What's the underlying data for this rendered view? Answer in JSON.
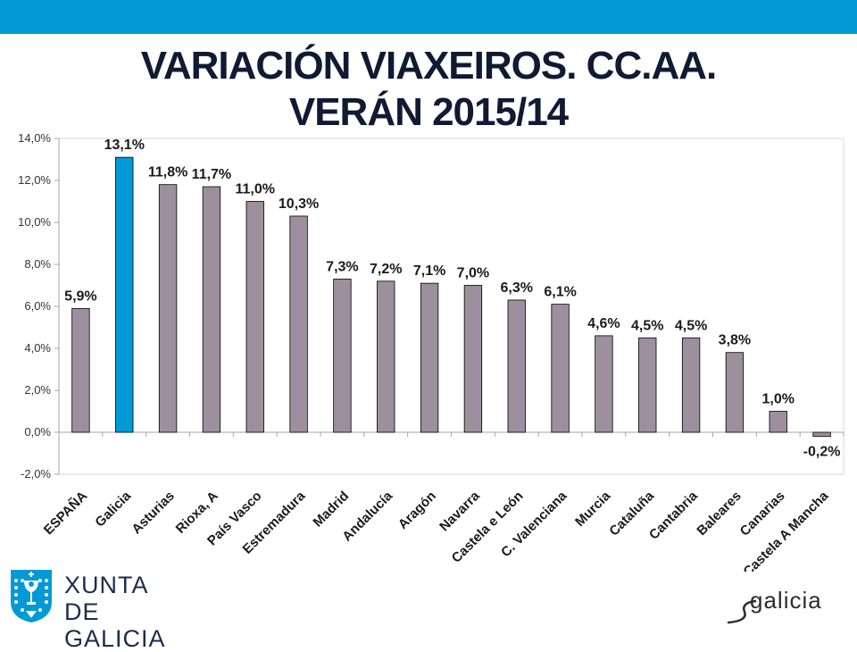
{
  "header": {
    "title_line1": "VARIACIÓN VIAXEIROS. CC.AA.",
    "title_line2": "VERÁN 2015/14"
  },
  "colors": {
    "bar_default": "#9d8f9d",
    "bar_highlight": "#0399d6",
    "top_bar": "#0399d6",
    "title": "#101a33",
    "logo_blue": "#0399d6"
  },
  "chart_data": {
    "type": "bar",
    "title": "VARIACIÓN VIAXEIROS. CC.AA. VERÁN 2015/14",
    "xlabel": "",
    "ylabel": "",
    "ylim": [
      -2.0,
      14.0
    ],
    "ytick_step": 2.0,
    "yticks": [
      "-2,0%",
      "0,0%",
      "2,0%",
      "4,0%",
      "6,0%",
      "8,0%",
      "10,0%",
      "12,0%",
      "14,0%"
    ],
    "grid": false,
    "highlight_category": "Galicia",
    "categories": [
      "ESPAÑA",
      "Galicia",
      "Asturias",
      "Rioxa, A",
      "País Vasco",
      "Estremadura",
      "Madrid",
      "Andalucía",
      "Aragón",
      "Navarra",
      "Castela e León",
      "C. Valenciana",
      "Murcia",
      "Cataluña",
      "Cantabria",
      "Baleares",
      "Canarias",
      "Castela A Mancha"
    ],
    "values": [
      5.9,
      13.1,
      11.8,
      11.7,
      11.0,
      10.3,
      7.3,
      7.2,
      7.1,
      7.0,
      6.3,
      6.1,
      4.6,
      4.5,
      4.5,
      3.8,
      1.0,
      -0.2
    ],
    "labels": [
      "5,9%",
      "13,1%",
      "11,8%",
      "11,7%",
      "11,0%",
      "10,3%",
      "7,3%",
      "7,2%",
      "7,1%",
      "7,0%",
      "6,3%",
      "6,1%",
      "4,6%",
      "4,5%",
      "4,5%",
      "3,8%",
      "1,0%",
      "-0,2%"
    ]
  },
  "logos": {
    "xunta_line1": "XUNTA",
    "xunta_line2": "DE GALICIA",
    "galicia_word": "galicia"
  }
}
